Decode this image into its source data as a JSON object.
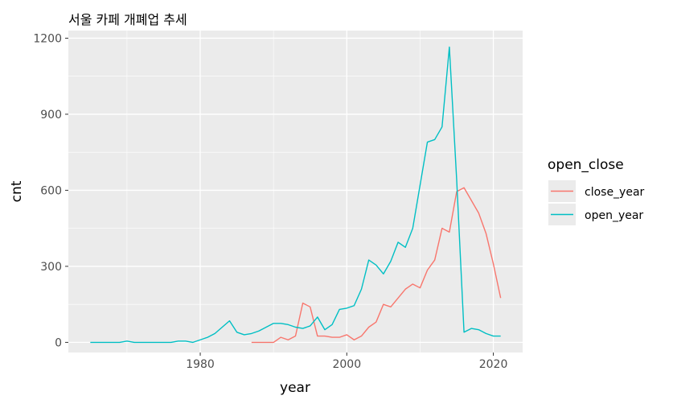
{
  "chart_data": {
    "type": "line",
    "title": "서울 카페 개폐업 추세",
    "xlabel": "year",
    "ylabel": "cnt",
    "xlim": [
      1962,
      2024
    ],
    "ylim": [
      -40,
      1230
    ],
    "x_ticks": [
      1980,
      2000,
      2020
    ],
    "y_ticks": [
      0,
      300,
      600,
      900,
      1200
    ],
    "grid": true,
    "legend": {
      "title": "open_close",
      "placement": "right"
    },
    "series": [
      {
        "name": "close_year",
        "color": "#F8766D",
        "x": [
          1987,
          1988,
          1989,
          1990,
          1991,
          1992,
          1993,
          1994,
          1995,
          1996,
          1997,
          1998,
          1999,
          2000,
          2001,
          2002,
          2003,
          2004,
          2005,
          2006,
          2007,
          2008,
          2009,
          2010,
          2011,
          2012,
          2013,
          2014,
          2015,
          2016,
          2017,
          2018,
          2019,
          2020,
          2021
        ],
        "y": [
          0,
          0,
          0,
          0,
          20,
          10,
          25,
          155,
          140,
          25,
          25,
          20,
          20,
          30,
          10,
          25,
          60,
          80,
          150,
          140,
          175,
          210,
          230,
          215,
          285,
          325,
          450,
          435,
          595,
          610,
          560,
          510,
          430,
          310,
          175
        ]
      },
      {
        "name": "open_year",
        "color": "#00BFC4",
        "x": [
          1965,
          1966,
          1967,
          1968,
          1969,
          1970,
          1971,
          1972,
          1973,
          1974,
          1975,
          1976,
          1977,
          1978,
          1979,
          1980,
          1981,
          1982,
          1983,
          1984,
          1985,
          1986,
          1987,
          1988,
          1989,
          1990,
          1991,
          1992,
          1993,
          1994,
          1995,
          1996,
          1997,
          1998,
          1999,
          2000,
          2001,
          2002,
          2003,
          2004,
          2005,
          2006,
          2007,
          2008,
          2009,
          2010,
          2011,
          2012,
          2013,
          2014,
          2015,
          2016,
          2017,
          2018,
          2019,
          2020,
          2021
        ],
        "y": [
          0,
          0,
          0,
          0,
          0,
          5,
          0,
          0,
          0,
          0,
          0,
          0,
          5,
          5,
          0,
          10,
          20,
          35,
          60,
          85,
          40,
          30,
          35,
          45,
          60,
          75,
          75,
          70,
          60,
          55,
          65,
          100,
          50,
          70,
          130,
          135,
          145,
          210,
          325,
          305,
          270,
          320,
          395,
          375,
          450,
          620,
          790,
          800,
          850,
          1165,
          640,
          40,
          55,
          50,
          35,
          25,
          25
        ]
      }
    ]
  }
}
